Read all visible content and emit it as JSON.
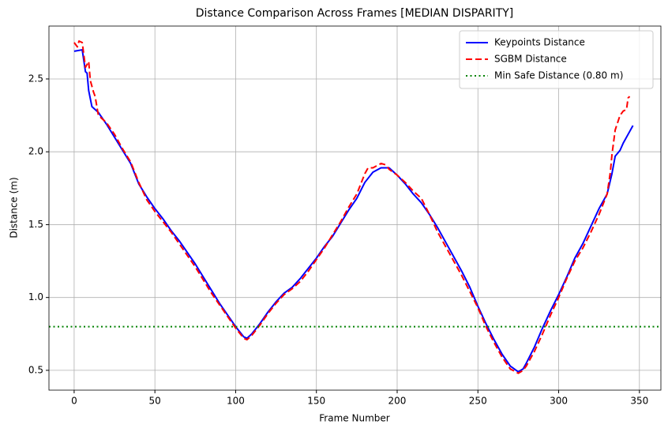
{
  "chart_data": {
    "type": "line",
    "title": "Distance Comparison Across Frames [MEDIAN DISPARITY]",
    "x_label": "Frame Number",
    "y_label": "Distance (m)",
    "xlim": [
      -15.6,
      363.3
    ],
    "ylim": [
      0.364,
      2.863
    ],
    "xticks": [
      0,
      50,
      100,
      150,
      200,
      250,
      300,
      350
    ],
    "yticks": [
      0.5,
      {
        "value": 1,
        "label": "1.0"
      },
      1.5,
      {
        "value": 2,
        "label": "2.0"
      },
      2.5
    ],
    "grid": true,
    "legend": "upper right",
    "series": [
      {
        "name": "Keypoints Distance",
        "color": "#0000ff",
        "style": "solid",
        "x": [
          0,
          5,
          7,
          8,
          9,
          11,
          15,
          20,
          25,
          30,
          35,
          40,
          45,
          50,
          55,
          60,
          65,
          70,
          75,
          80,
          85,
          90,
          95,
          100,
          105,
          107,
          110,
          115,
          120,
          125,
          130,
          135,
          140,
          145,
          150,
          155,
          160,
          165,
          170,
          175,
          180,
          185,
          190,
          195,
          200,
          205,
          210,
          215,
          220,
          225,
          230,
          235,
          240,
          245,
          250,
          255,
          260,
          265,
          270,
          275,
          278,
          280,
          285,
          290,
          295,
          300,
          305,
          310,
          315,
          320,
          325,
          330,
          333,
          335,
          338,
          340,
          343,
          346
        ],
        "values": [
          2.69,
          2.7,
          2.55,
          2.54,
          2.42,
          2.31,
          2.27,
          2.19,
          2.1,
          2.01,
          1.92,
          1.78,
          1.69,
          1.61,
          1.54,
          1.46,
          1.39,
          1.31,
          1.23,
          1.14,
          1.05,
          0.96,
          0.88,
          0.8,
          0.73,
          0.72,
          0.75,
          0.82,
          0.9,
          0.97,
          1.03,
          1.07,
          1.13,
          1.2,
          1.27,
          1.35,
          1.42,
          1.51,
          1.6,
          1.68,
          1.79,
          1.86,
          1.89,
          1.89,
          1.84,
          1.78,
          1.71,
          1.65,
          1.57,
          1.48,
          1.38,
          1.28,
          1.18,
          1.07,
          0.94,
          0.82,
          0.71,
          0.61,
          0.53,
          0.49,
          0.51,
          0.55,
          0.66,
          0.79,
          0.91,
          1.02,
          1.14,
          1.27,
          1.37,
          1.49,
          1.61,
          1.71,
          1.85,
          1.97,
          2.01,
          2.06,
          2.12,
          2.18
        ]
      },
      {
        "name": "SGBM Distance",
        "color": "#ff0000",
        "style": "dashed",
        "x": [
          0,
          2,
          3,
          5,
          7,
          9,
          10,
          12,
          13,
          15,
          20,
          25,
          30,
          35,
          40,
          45,
          50,
          55,
          60,
          65,
          70,
          75,
          80,
          85,
          90,
          95,
          100,
          105,
          107,
          110,
          115,
          120,
          125,
          130,
          135,
          140,
          145,
          150,
          155,
          160,
          165,
          170,
          175,
          180,
          182,
          185,
          190,
          193,
          195,
          200,
          205,
          210,
          215,
          220,
          225,
          230,
          235,
          240,
          245,
          250,
          255,
          260,
          265,
          270,
          275,
          278,
          280,
          285,
          290,
          295,
          300,
          305,
          310,
          315,
          320,
          325,
          330,
          332,
          333,
          335,
          338,
          340,
          342,
          343,
          344
        ],
        "values": [
          2.75,
          2.72,
          2.76,
          2.75,
          2.58,
          2.62,
          2.49,
          2.41,
          2.38,
          2.25,
          2.2,
          2.12,
          2.02,
          1.93,
          1.79,
          1.67,
          1.59,
          1.52,
          1.45,
          1.37,
          1.29,
          1.21,
          1.12,
          1.03,
          0.95,
          0.87,
          0.79,
          0.72,
          0.71,
          0.74,
          0.81,
          0.89,
          0.96,
          1.02,
          1.06,
          1.11,
          1.18,
          1.26,
          1.34,
          1.43,
          1.52,
          1.62,
          1.71,
          1.85,
          1.89,
          1.89,
          1.92,
          1.91,
          1.88,
          1.84,
          1.79,
          1.73,
          1.68,
          1.57,
          1.45,
          1.35,
          1.25,
          1.15,
          1.04,
          0.93,
          0.8,
          0.69,
          0.59,
          0.51,
          0.48,
          0.5,
          0.53,
          0.63,
          0.75,
          0.88,
          1.0,
          1.13,
          1.25,
          1.34,
          1.45,
          1.57,
          1.71,
          1.86,
          1.98,
          2.15,
          2.25,
          2.28,
          2.29,
          2.37,
          2.38
        ]
      }
    ],
    "reference_lines": [
      {
        "name": "Min Safe Distance (0.80 m)",
        "value": 0.8,
        "color": "#008000",
        "style": "dotted"
      }
    ]
  }
}
